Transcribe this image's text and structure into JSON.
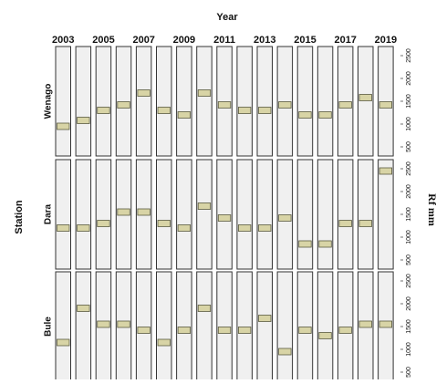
{
  "chart_data": {
    "type": "lattice-level-plot",
    "xlabel_top": "Year",
    "ylabel_left": "Station",
    "ylabel_right": "Rf mm",
    "years": [
      2003,
      2004,
      2005,
      2006,
      2007,
      2008,
      2009,
      2010,
      2011,
      2012,
      2013,
      2014,
      2015,
      2016,
      2017,
      2018,
      2019
    ],
    "year_tick_labels": [
      "2003",
      "2005",
      "2007",
      "2009",
      "2011",
      "2013",
      "2015",
      "2017",
      "2019"
    ],
    "y_ticks": [
      500,
      1000,
      1500,
      2000,
      2500
    ],
    "ylim": [
      300,
      2700
    ],
    "stations": [
      {
        "name": "Wenago",
        "values": [
          950,
          1080,
          1300,
          1420,
          1680,
          1300,
          1200,
          1680,
          1420,
          1300,
          1300,
          1420,
          1200,
          1200,
          1420,
          1580,
          1420
        ]
      },
      {
        "name": "Dara",
        "values": [
          1200,
          1200,
          1300,
          1550,
          1550,
          1300,
          1200,
          1680,
          1420,
          1200,
          1200,
          1420,
          850,
          850,
          1300,
          1300,
          2450
        ]
      },
      {
        "name": "Bule",
        "values": [
          1150,
          1900,
          1550,
          1550,
          1420,
          1150,
          1420,
          1900,
          1420,
          1420,
          1680,
          950,
          1420,
          1300,
          1420,
          1550,
          1550
        ]
      }
    ],
    "colors": {
      "panel_fill": "#f0f0f0",
      "marker_fill": "#d8d4a6",
      "marker_stroke": "#5a5a40",
      "border": "#333333"
    }
  }
}
